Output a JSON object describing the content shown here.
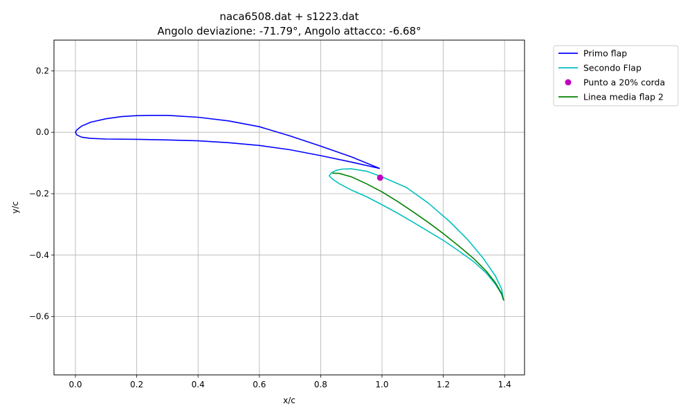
{
  "chart_data": {
    "type": "line",
    "title": "naca6508.dat + s1223.dat",
    "subtitle": "Angolo deviazione: -71.79°, Angolo attacco: -6.68°",
    "xlabel": "x/c",
    "ylabel": "y/c",
    "xlim": [
      -0.07,
      1.465
    ],
    "ylim": [
      -0.79,
      0.3
    ],
    "x_ticks": [
      "0.0",
      "0.2",
      "0.4",
      "0.6",
      "0.8",
      "1.0",
      "1.2",
      "1.4"
    ],
    "y_ticks": [
      "0.2",
      "0.0",
      "−0.2",
      "−0.4",
      "−0.6"
    ],
    "grid": true,
    "legend_position": "outside-top-right",
    "series": [
      {
        "name": "Primo flap",
        "color": "#0000ff",
        "marker": "line",
        "points": [
          [
            0.993,
            -0.118
          ],
          [
            0.9,
            -0.08
          ],
          [
            0.8,
            -0.045
          ],
          [
            0.7,
            -0.012
          ],
          [
            0.6,
            0.018
          ],
          [
            0.5,
            0.037
          ],
          [
            0.4,
            0.049
          ],
          [
            0.3,
            0.055
          ],
          [
            0.25,
            0.055
          ],
          [
            0.2,
            0.054
          ],
          [
            0.15,
            0.051
          ],
          [
            0.1,
            0.044
          ],
          [
            0.05,
            0.033
          ],
          [
            0.02,
            0.02
          ],
          [
            0.005,
            0.008
          ],
          [
            0.0,
            0.0
          ],
          [
            0.005,
            -0.009
          ],
          [
            0.02,
            -0.016
          ],
          [
            0.05,
            -0.02
          ],
          [
            0.1,
            -0.022
          ],
          [
            0.2,
            -0.023
          ],
          [
            0.3,
            -0.025
          ],
          [
            0.4,
            -0.028
          ],
          [
            0.5,
            -0.034
          ],
          [
            0.6,
            -0.043
          ],
          [
            0.7,
            -0.057
          ],
          [
            0.8,
            -0.076
          ],
          [
            0.9,
            -0.097
          ],
          [
            0.993,
            -0.118
          ]
        ]
      },
      {
        "name": "Secondo Flap",
        "color": "#00bfbf",
        "marker": "line",
        "points": [
          [
            1.397,
            -0.548
          ],
          [
            1.39,
            -0.51
          ],
          [
            1.37,
            -0.468
          ],
          [
            1.33,
            -0.41
          ],
          [
            1.28,
            -0.35
          ],
          [
            1.22,
            -0.29
          ],
          [
            1.15,
            -0.23
          ],
          [
            1.08,
            -0.18
          ],
          [
            1.0,
            -0.145
          ],
          [
            0.95,
            -0.127
          ],
          [
            0.9,
            -0.119
          ],
          [
            0.87,
            -0.12
          ],
          [
            0.85,
            -0.124
          ],
          [
            0.835,
            -0.132
          ],
          [
            0.828,
            -0.142
          ],
          [
            0.838,
            -0.152
          ],
          [
            0.86,
            -0.167
          ],
          [
            0.9,
            -0.188
          ],
          [
            0.95,
            -0.21
          ],
          [
            1.0,
            -0.236
          ],
          [
            1.05,
            -0.263
          ],
          [
            1.1,
            -0.292
          ],
          [
            1.15,
            -0.322
          ],
          [
            1.2,
            -0.352
          ],
          [
            1.25,
            -0.386
          ],
          [
            1.3,
            -0.422
          ],
          [
            1.34,
            -0.458
          ],
          [
            1.37,
            -0.495
          ],
          [
            1.39,
            -0.527
          ],
          [
            1.397,
            -0.548
          ]
        ]
      },
      {
        "name": "Punto a 20% corda",
        "color": "#bf00bf",
        "marker": "point",
        "points": [
          [
            0.994,
            -0.148
          ]
        ]
      },
      {
        "name": "Linea media flap 2",
        "color": "#008000",
        "marker": "line",
        "points": [
          [
            0.838,
            -0.133
          ],
          [
            0.86,
            -0.134
          ],
          [
            0.9,
            -0.145
          ],
          [
            0.95,
            -0.168
          ],
          [
            1.0,
            -0.194
          ],
          [
            1.05,
            -0.225
          ],
          [
            1.1,
            -0.258
          ],
          [
            1.15,
            -0.293
          ],
          [
            1.2,
            -0.33
          ],
          [
            1.25,
            -0.37
          ],
          [
            1.3,
            -0.412
          ],
          [
            1.34,
            -0.452
          ],
          [
            1.37,
            -0.49
          ],
          [
            1.39,
            -0.525
          ],
          [
            1.397,
            -0.548
          ]
        ]
      }
    ]
  }
}
